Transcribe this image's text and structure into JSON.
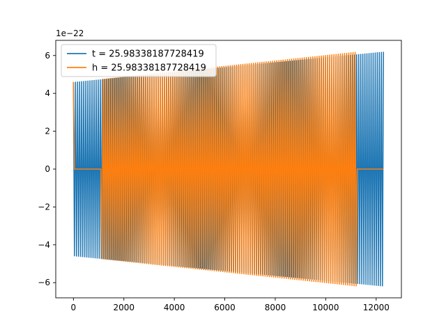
{
  "chart_data": {
    "type": "line",
    "title": "",
    "xlabel": "",
    "ylabel": "",
    "y_scale_label": "1e−22",
    "xlim": [
      -700,
      13000
    ],
    "ylim": [
      -6.8,
      6.8
    ],
    "x_ticks": [
      {
        "value": 0,
        "label": "0"
      },
      {
        "value": 2000,
        "label": "2000"
      },
      {
        "value": 4000,
        "label": "4000"
      },
      {
        "value": 6000,
        "label": "6000"
      },
      {
        "value": 8000,
        "label": "8000"
      },
      {
        "value": 10000,
        "label": "10000"
      },
      {
        "value": 12000,
        "label": "12000"
      }
    ],
    "y_ticks": [
      {
        "value": 6,
        "label": "6"
      },
      {
        "value": 4,
        "label": "4"
      },
      {
        "value": 2,
        "label": "2"
      },
      {
        "value": 0,
        "label": "0"
      },
      {
        "value": -2,
        "label": "−2"
      },
      {
        "value": -4,
        "label": "−4"
      },
      {
        "value": -6,
        "label": "−6"
      }
    ],
    "grid": false,
    "legend_position": "top-left",
    "series": [
      {
        "name": "t = 25.98338187728419",
        "color": "#1f77b4",
        "kind": "oscillation",
        "x_start": 0,
        "x_end": 12290,
        "amplitude_start": 4.6,
        "amplitude_end": 6.2,
        "cycles": 150,
        "flat_segments": []
      },
      {
        "name": "h = 25.98338187728419",
        "color": "#ff7f0e",
        "kind": "oscillation",
        "x_start": 0,
        "x_end": 11250,
        "amplitude_start": 4.6,
        "amplitude_end": 6.2,
        "cycles": 134,
        "flat_segments": [
          [
            40,
            1100
          ],
          [
            11250,
            12290
          ]
        ]
      }
    ]
  }
}
